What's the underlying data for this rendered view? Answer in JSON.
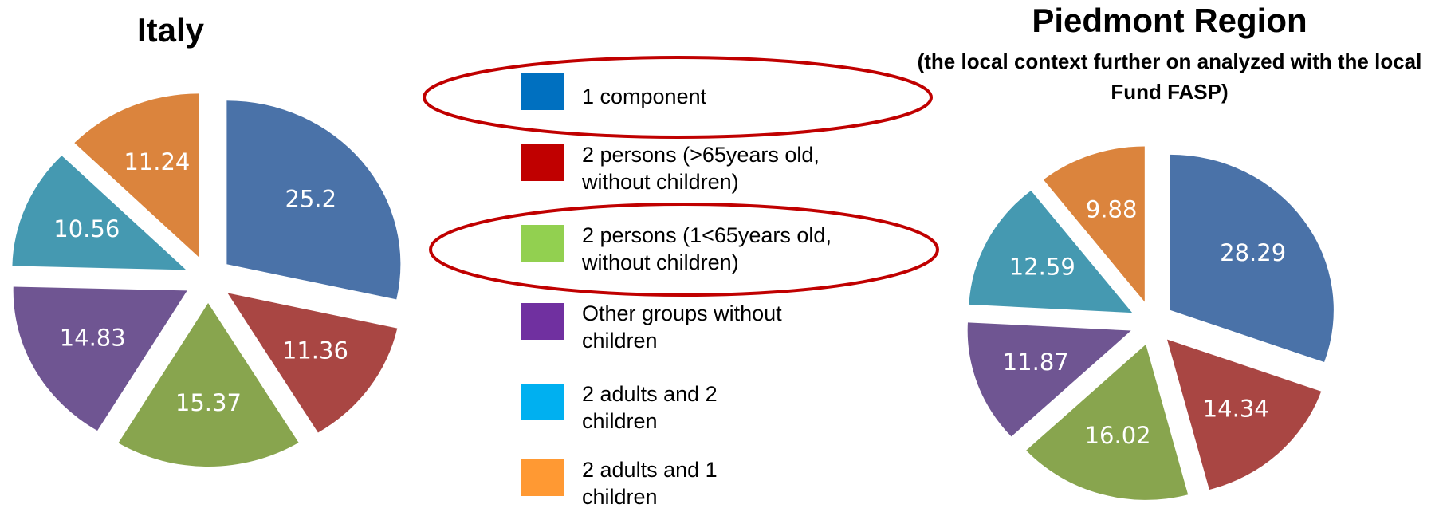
{
  "chart_data": [
    {
      "type": "pie",
      "title": "Italy",
      "values": [
        25.2,
        11.36,
        15.37,
        14.83,
        10.56,
        11.24
      ],
      "colors": [
        "#4a72a8",
        "#a94643",
        "#88a54e",
        "#6f5592",
        "#4599b1",
        "#db843d"
      ]
    },
    {
      "type": "pie",
      "title": "Piedmont Region",
      "subtitle": "(the local context further on analyzed with the local Fund FASP)",
      "values": [
        28.29,
        14.34,
        16.02,
        11.87,
        12.59,
        9.88
      ],
      "colors": [
        "#4a72a8",
        "#a94643",
        "#88a54e",
        "#6f5592",
        "#4599b1",
        "#db843d"
      ]
    }
  ],
  "legend": {
    "categories": [
      "1 component",
      "2 persons (>65years old, without children)",
      "2 persons (1<65years old, without children)",
      "Other groups without children",
      "2 adults and 2 children",
      "2 adults and 1 children"
    ],
    "colors": [
      "#0070c0",
      "#c00000",
      "#92d050",
      "#7030a0",
      "#00b0f0",
      "#ff9933"
    ],
    "highlighted": [
      0,
      2
    ]
  }
}
